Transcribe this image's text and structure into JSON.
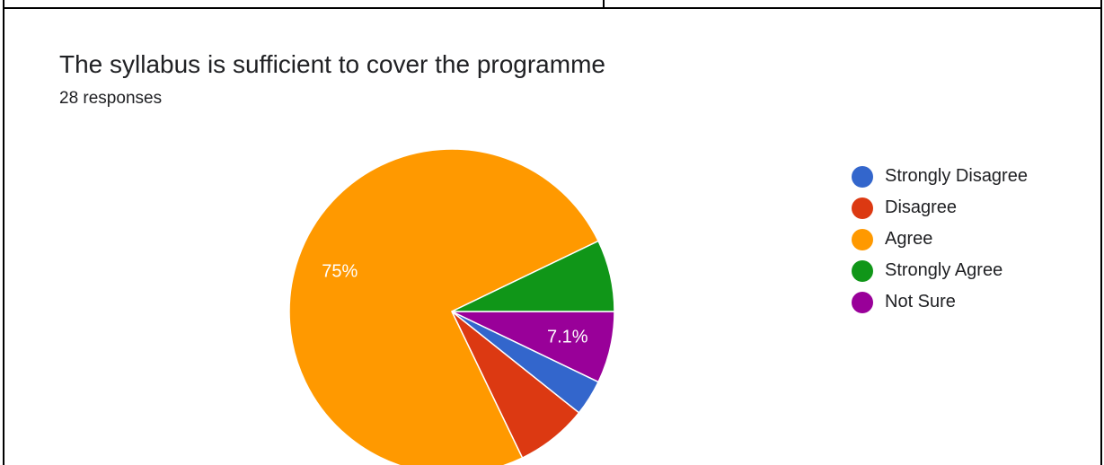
{
  "chart_data": {
    "type": "pie",
    "title": "The syllabus is sufficient to cover the programme",
    "subtitle": "28 responses",
    "total": 28,
    "series": [
      {
        "name": "Strongly Disagree",
        "count": 1,
        "percent": 3.6,
        "color": "#3366cc",
        "label": ""
      },
      {
        "name": "Disagree",
        "count": 2,
        "percent": 7.1,
        "color": "#dc3912",
        "label": ""
      },
      {
        "name": "Agree",
        "count": 21,
        "percent": 75,
        "color": "#ff9900",
        "label": "75%"
      },
      {
        "name": "Strongly Agree",
        "count": 2,
        "percent": 7.1,
        "color": "#109618",
        "label": ""
      },
      {
        "name": "Not Sure",
        "count": 2,
        "percent": 7.1,
        "color": "#990099",
        "label": "7.1%"
      }
    ],
    "pie_order": [
      "Not Sure",
      "Strongly Disagree",
      "Disagree",
      "Agree",
      "Strongly Agree"
    ],
    "legend_position": "right"
  }
}
